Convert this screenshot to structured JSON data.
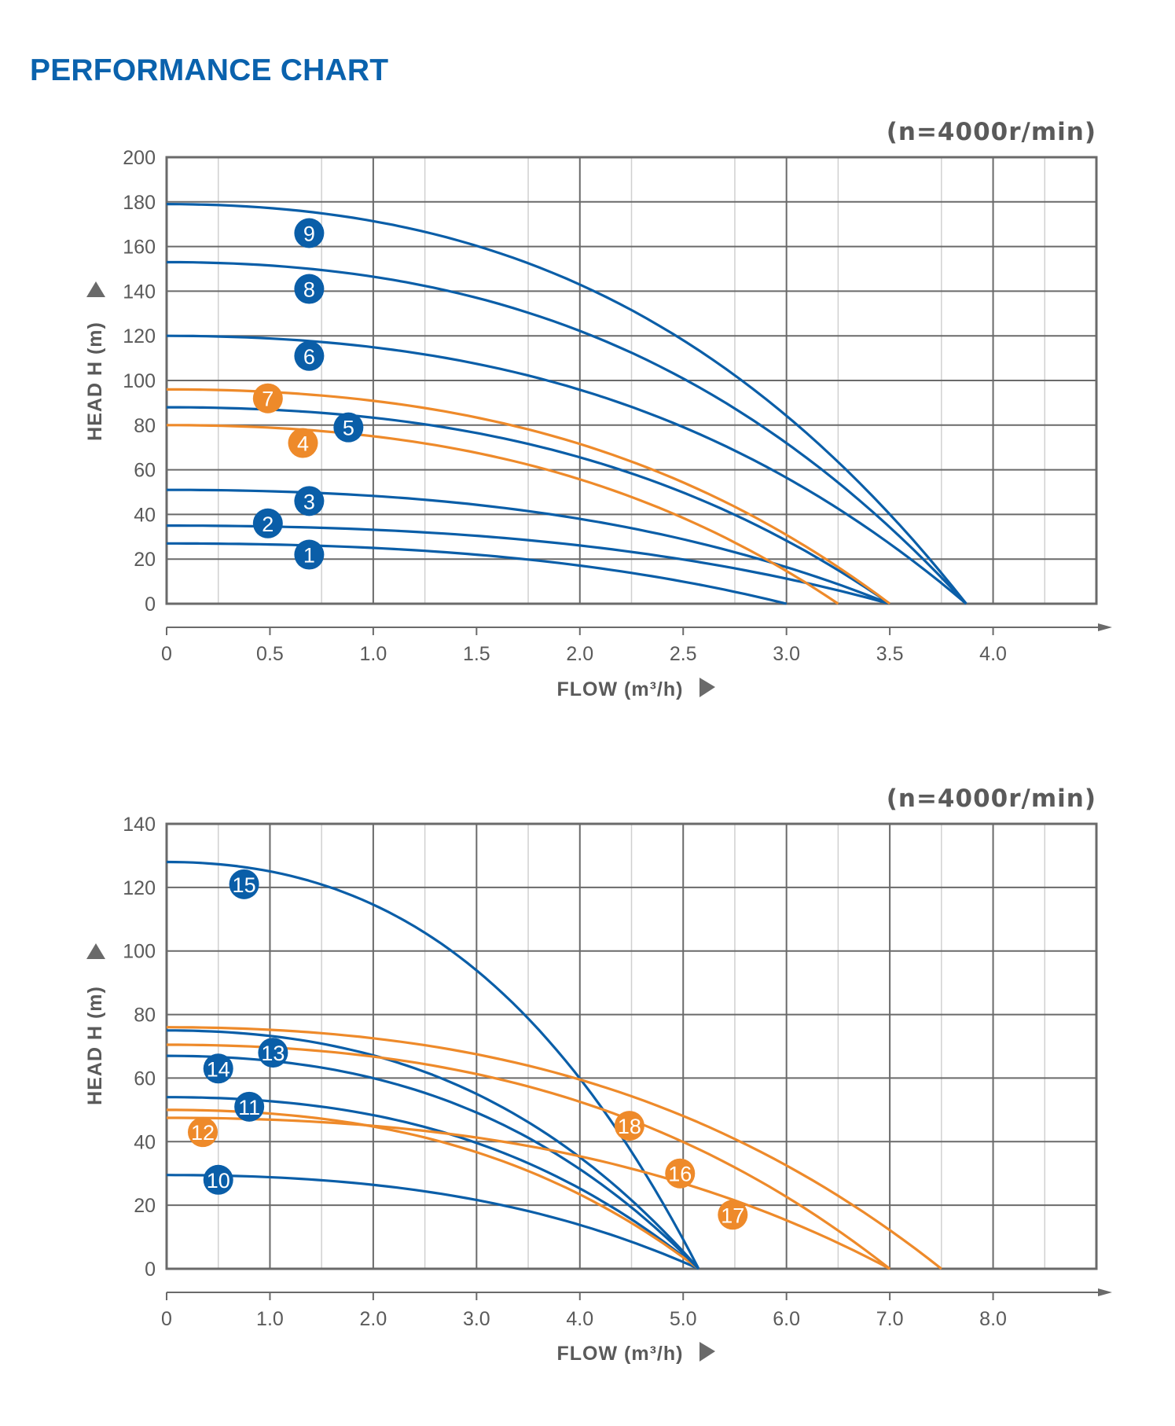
{
  "page": {
    "title": "PERFORMANCE CHART"
  },
  "colors": {
    "blue": "#0a5ea8",
    "orange": "#ee8a2a",
    "grid_major": "#6a6a6a",
    "grid_minor": "#d0d0d0",
    "text": "#5a5a5a",
    "title": "#0a62ad"
  },
  "chart_data": [
    {
      "type": "line",
      "title": "(n=4000r/min)",
      "xlabel": "FLOW (m³/h)",
      "ylabel": "HEAD H (m)",
      "xlim": [
        0,
        4.5
      ],
      "ylim": [
        0,
        200
      ],
      "x_ticks": [
        0,
        0.5,
        1.0,
        1.5,
        2.0,
        2.5,
        3.0,
        3.5,
        4.0
      ],
      "x_tick_labels": [
        "0",
        "0.5",
        "1.0",
        "1.5",
        "2.0",
        "2.5",
        "3.0",
        "3.5",
        "4.0"
      ],
      "y_ticks": [
        0,
        20,
        40,
        60,
        80,
        100,
        120,
        140,
        160,
        180,
        200
      ],
      "y_tick_labels": [
        "0",
        "20",
        "40",
        "60",
        "80",
        "100",
        "120",
        "140",
        "160",
        "180",
        "200"
      ],
      "grid": true,
      "series": [
        {
          "name": "1",
          "color": "orange_false",
          "shutoff_head": 27,
          "max_flow": 3.0,
          "label_at": [
            0.69,
            22
          ]
        },
        {
          "name": "2",
          "shutoff_head": 35,
          "max_flow": 3.5,
          "label_at": [
            0.49,
            36
          ]
        },
        {
          "name": "3",
          "shutoff_head": 51,
          "max_flow": 3.5,
          "label_at": [
            0.69,
            46
          ]
        },
        {
          "name": "4",
          "shutoff_head": 80,
          "max_flow": 3.25,
          "label_at": [
            0.66,
            72
          ]
        },
        {
          "name": "5",
          "shutoff_head": 88,
          "max_flow": 3.5,
          "label_at": [
            0.88,
            79
          ]
        },
        {
          "name": "6",
          "shutoff_head": 120,
          "max_flow": 3.87,
          "label_at": [
            0.69,
            111
          ]
        },
        {
          "name": "7",
          "shutoff_head": 96,
          "max_flow": 3.5,
          "label_at": [
            0.49,
            92
          ]
        },
        {
          "name": "8",
          "shutoff_head": 153,
          "max_flow": 3.87,
          "label_at": [
            0.69,
            141
          ]
        },
        {
          "name": "9",
          "shutoff_head": 179,
          "max_flow": 3.87,
          "label_at": [
            0.69,
            166
          ]
        }
      ],
      "series_colors": [
        "blue",
        "blue",
        "blue",
        "orange",
        "blue",
        "blue",
        "orange",
        "blue",
        "blue"
      ]
    },
    {
      "type": "line",
      "title": "(n=4000r/min)",
      "xlabel": "FLOW (m³/h)",
      "ylabel": "HEAD H (m)",
      "xlim": [
        0,
        9.0
      ],
      "ylim": [
        0,
        140
      ],
      "x_ticks": [
        0,
        1.0,
        2.0,
        3.0,
        4.0,
        5.0,
        6.0,
        7.0,
        8.0
      ],
      "x_tick_labels": [
        "0",
        "1.0",
        "2.0",
        "3.0",
        "4.0",
        "5.0",
        "6.0",
        "7.0",
        "8.0"
      ],
      "y_ticks": [
        0,
        20,
        40,
        60,
        80,
        100,
        120,
        140
      ],
      "y_tick_labels": [
        "0",
        "20",
        "40",
        "60",
        "80",
        "100",
        "120",
        "140"
      ],
      "grid": true,
      "series": [
        {
          "name": "10",
          "shutoff_head": 29.5,
          "max_flow": 5.15,
          "label_at": [
            0.5,
            28
          ]
        },
        {
          "name": "11",
          "shutoff_head": 54,
          "max_flow": 5.15,
          "label_at": [
            0.8,
            51
          ]
        },
        {
          "name": "12",
          "shutoff_head": 50,
          "max_flow": 5.15,
          "label_at": [
            0.35,
            43
          ]
        },
        {
          "name": "13",
          "shutoff_head": 75,
          "max_flow": 5.15,
          "label_at": [
            1.03,
            68
          ]
        },
        {
          "name": "14",
          "shutoff_head": 67,
          "max_flow": 5.15,
          "label_at": [
            0.5,
            63
          ]
        },
        {
          "name": "15",
          "shutoff_head": 128,
          "max_flow": 5.15,
          "label_at": [
            0.75,
            121
          ]
        },
        {
          "name": "16",
          "shutoff_head": 70.5,
          "max_flow": 7.0,
          "label_at": [
            4.97,
            30
          ]
        },
        {
          "name": "17",
          "shutoff_head": 47.5,
          "max_flow": 7.0,
          "label_at": [
            5.48,
            17
          ]
        },
        {
          "name": "18",
          "shutoff_head": 76,
          "max_flow": 7.5,
          "label_at": [
            4.48,
            45
          ]
        }
      ],
      "series_colors": [
        "blue",
        "blue",
        "orange",
        "blue",
        "blue",
        "blue",
        "orange",
        "orange",
        "orange"
      ]
    }
  ]
}
